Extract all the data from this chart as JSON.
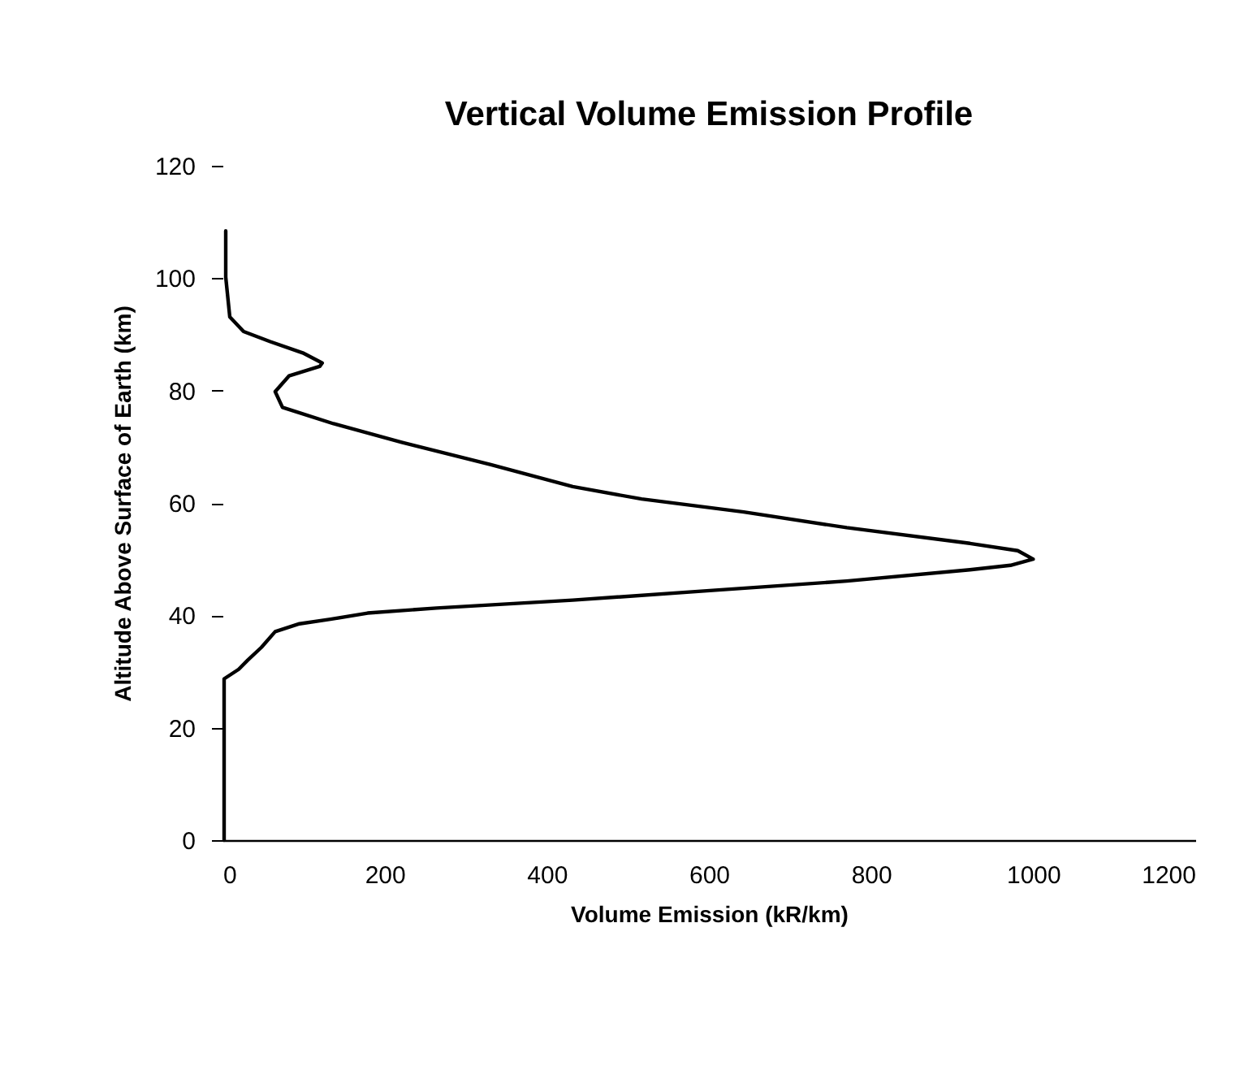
{
  "chart_data": {
    "type": "line",
    "title": "Vertical Volume Emission Profile",
    "xlabel": "Volume Emission (kR/km)",
    "ylabel": "Altitude Above Surface of Earth  (km)",
    "xlim": [
      0,
      1200
    ],
    "xticks": [
      0,
      200,
      400,
      600,
      800,
      1000,
      1200
    ],
    "ylim": [
      0,
      120
    ],
    "yticks": [
      0,
      20,
      40,
      60,
      80,
      100,
      120
    ],
    "grid": false,
    "marker": "none",
    "line_style": "solid",
    "series": [
      {
        "color": "#000000",
        "x": [
          2,
          2,
          20,
          31,
          48,
          65,
          95,
          133,
          179,
          264,
          432,
          601,
          770,
          922,
          972,
          1000,
          981,
          922,
          770,
          643,
          517,
          432,
          331,
          221,
          137,
          74,
          65,
          82,
          120,
          123,
          99,
          59,
          26,
          9,
          4,
          4
        ],
        "values": [
          0,
          28.7,
          30.4,
          32,
          34.3,
          37.1,
          38.5,
          39.3,
          40.4,
          41.3,
          42.7,
          44.4,
          46.1,
          48.1,
          48.9,
          50,
          51.5,
          52.8,
          55.6,
          58.4,
          60.7,
          62.9,
          66.8,
          70.8,
          74.1,
          77,
          79.8,
          82.6,
          84.3,
          84.9,
          86.7,
          88.7,
          90.5,
          93.1,
          100.2,
          108.4
        ]
      }
    ]
  }
}
